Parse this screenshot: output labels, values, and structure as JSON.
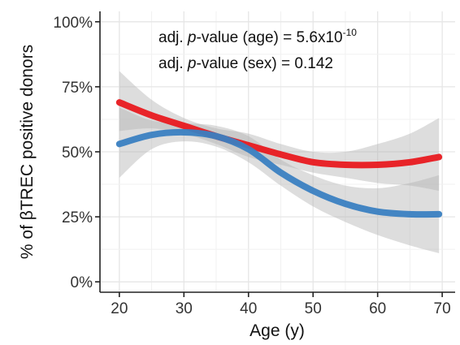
{
  "chart_data": {
    "type": "line",
    "xlabel": "Age (y)",
    "ylabel_prefix": "% of ",
    "ylabel_symbol": "β",
    "ylabel_suffix": "TREC positive donors",
    "xlim": [
      17,
      72
    ],
    "ylim": [
      -0.04,
      1.04
    ],
    "grid": true,
    "x_ticks": [
      20,
      30,
      40,
      50,
      60,
      70
    ],
    "y_ticks": [
      0,
      0.25,
      0.5,
      0.75,
      1.0
    ],
    "y_tick_labels": [
      "0%",
      "25%",
      "50%",
      "75%",
      "100%"
    ],
    "annotations": {
      "line1_prefix": "adj. ",
      "line1_italic": "p",
      "line1_middle": "-value (age) = 5.6x10",
      "line1_sup": "-10",
      "line2_prefix": "adj. ",
      "line2_italic": "p",
      "line2_rest": "-value (sex) = 0.142"
    },
    "series": [
      {
        "color": "#e8191f",
        "x": [
          20,
          25,
          30,
          35,
          40,
          45,
          50,
          55,
          60,
          65,
          69.5
        ],
        "y": [
          0.69,
          0.64,
          0.6,
          0.56,
          0.525,
          0.49,
          0.46,
          0.45,
          0.45,
          0.46,
          0.48
        ],
        "ci_lower": [
          0.58,
          0.59,
          0.57,
          0.53,
          0.48,
          0.45,
          0.42,
          0.4,
          0.38,
          0.37,
          0.35
        ],
        "ci_upper": [
          0.81,
          0.7,
          0.63,
          0.59,
          0.57,
          0.53,
          0.5,
          0.5,
          0.53,
          0.57,
          0.63
        ]
      },
      {
        "color": "#3a7fc1",
        "x": [
          20,
          25,
          30,
          35,
          40,
          45,
          50,
          55,
          60,
          65,
          69.5
        ],
        "y": [
          0.53,
          0.565,
          0.575,
          0.56,
          0.51,
          0.42,
          0.35,
          0.3,
          0.27,
          0.26,
          0.26
        ],
        "ci_lower": [
          0.4,
          0.51,
          0.54,
          0.52,
          0.46,
          0.37,
          0.29,
          0.23,
          0.18,
          0.14,
          0.11
        ],
        "ci_upper": [
          0.67,
          0.62,
          0.61,
          0.6,
          0.56,
          0.47,
          0.41,
          0.37,
          0.36,
          0.38,
          0.41
        ]
      }
    ],
    "ci_color": "#b3b3b3"
  }
}
